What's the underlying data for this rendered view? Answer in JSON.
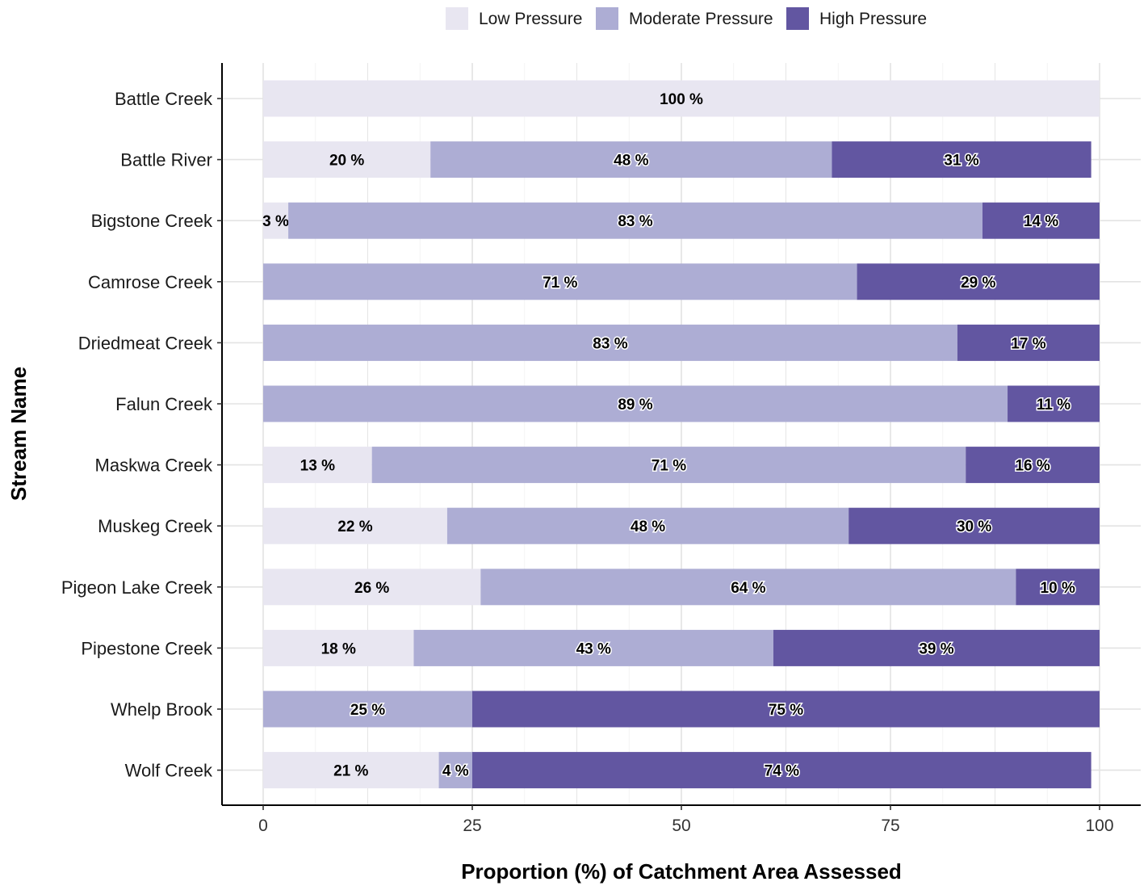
{
  "chart_data": {
    "type": "bar",
    "orientation": "horizontal",
    "stacked": true,
    "title": "",
    "xlabel": "Proportion (%) of Catchment Area Assessed",
    "ylabel": "Stream Name",
    "xlim": [
      0,
      100
    ],
    "xticks": [
      "0",
      "25",
      "50",
      "75",
      "100"
    ],
    "grid": true,
    "legend_position": "top",
    "categories": [
      "Battle Creek",
      "Battle River",
      "Bigstone Creek",
      "Camrose Creek",
      "Driedmeat Creek",
      "Falun Creek",
      "Maskwa Creek",
      "Muskeg Creek",
      "Pigeon Lake Creek",
      "Pipestone Creek",
      "Whelp Brook",
      "Wolf Creek"
    ],
    "series": [
      {
        "name": "Low Pressure",
        "color": "#e8e6f1",
        "values": [
          100,
          20,
          3,
          0,
          0,
          0,
          13,
          22,
          26,
          18,
          0,
          21
        ],
        "labels": [
          "100 %",
          "20 %",
          "3 %",
          "",
          "",
          "",
          "13 %",
          "22 %",
          "26 %",
          "18 %",
          "",
          "21 %"
        ]
      },
      {
        "name": "Moderate Pressure",
        "color": "#adadd4",
        "values": [
          0,
          48,
          83,
          71,
          83,
          89,
          71,
          48,
          64,
          43,
          25,
          4
        ],
        "labels": [
          "",
          "48 %",
          "83 %",
          "71 %",
          "83 %",
          "89 %",
          "71 %",
          "48 %",
          "64 %",
          "43 %",
          "25 %",
          "4 %"
        ]
      },
      {
        "name": "High Pressure",
        "color": "#6256a1",
        "values": [
          0,
          31,
          14,
          29,
          17,
          11,
          16,
          30,
          10,
          39,
          75,
          74
        ],
        "labels": [
          "",
          "31 %",
          "14 %",
          "29 %",
          "17 %",
          "11 %",
          "16 %",
          "30 %",
          "10 %",
          "39 %",
          "75 %",
          "74 %"
        ]
      }
    ]
  }
}
